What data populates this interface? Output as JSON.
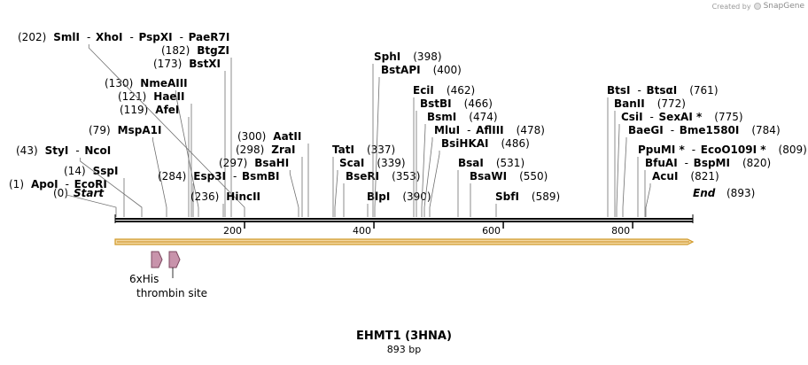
{
  "credit": {
    "text": "Created by",
    "brand": "SnapGene"
  },
  "map": {
    "name": "EHMT1 (3HNA)",
    "length_label": "893 bp",
    "length_bp": 893,
    "start_label": "Start",
    "start_pos": "(0)",
    "end_label": "End",
    "end_pos": "(893)",
    "ticks": [
      {
        "bp": 200,
        "label": "200"
      },
      {
        "bp": 400,
        "label": "400"
      },
      {
        "bp": 600,
        "label": "600"
      },
      {
        "bp": 800,
        "label": "800"
      }
    ],
    "colors": {
      "backbone": "#000000",
      "orf_fill": "#f3d9a4",
      "orf_stroke": "#d19a2a",
      "feature_fill": "#c893ab",
      "feature_stroke": "#7d4960"
    },
    "enzyme_groups": [
      {
        "pos": "(1)",
        "bp": 1,
        "names": [
          "ApoI",
          "EcoRI"
        ]
      },
      {
        "pos": "(14)",
        "bp": 14,
        "names": [
          "SspI"
        ]
      },
      {
        "pos": "(43)",
        "bp": 43,
        "names": [
          "StyI",
          "NcoI"
        ]
      },
      {
        "pos": "(79)",
        "bp": 79,
        "names": [
          "MspA1I"
        ]
      },
      {
        "pos": "(119)",
        "bp": 119,
        "names": [
          "AfeI"
        ]
      },
      {
        "pos": "(121)",
        "bp": 121,
        "names": [
          "HaeII"
        ]
      },
      {
        "pos": "(130)",
        "bp": 130,
        "names": [
          "NmeAIII"
        ]
      },
      {
        "pos": "(173)",
        "bp": 173,
        "names": [
          "BstXI"
        ]
      },
      {
        "pos": "(182)",
        "bp": 182,
        "names": [
          "BtgZI"
        ]
      },
      {
        "pos": "(202)",
        "bp": 202,
        "names": [
          "SmlI",
          "XhoI",
          "PspXI",
          "PaeR7I"
        ]
      },
      {
        "pos": "(284)",
        "bp": 284,
        "names": [
          "Esp3I",
          "BsmBI"
        ]
      },
      {
        "pos": "(236)",
        "bp": 236,
        "names": [
          "HincII"
        ]
      },
      {
        "pos": "(297)",
        "bp": 297,
        "names": [
          "BsaHI"
        ]
      },
      {
        "pos": "(298)",
        "bp": 298,
        "names": [
          "ZraI"
        ]
      },
      {
        "pos": "(300)",
        "bp": 300,
        "names": [
          "AatII"
        ]
      },
      {
        "pos": "(337)",
        "bp": 337,
        "names": [
          "TatI"
        ]
      },
      {
        "pos": "(339)",
        "bp": 339,
        "names": [
          "ScaI"
        ]
      },
      {
        "pos": "(353)",
        "bp": 353,
        "names": [
          "BseRI"
        ]
      },
      {
        "pos": "(390)",
        "bp": 390,
        "names": [
          "BlpI"
        ]
      },
      {
        "pos": "(398)",
        "bp": 398,
        "names": [
          "SphI"
        ]
      },
      {
        "pos": "(400)",
        "bp": 400,
        "names": [
          "BstAPI"
        ]
      },
      {
        "pos": "(462)",
        "bp": 462,
        "names": [
          "EciI"
        ]
      },
      {
        "pos": "(466)",
        "bp": 466,
        "names": [
          "BstBI"
        ]
      },
      {
        "pos": "(474)",
        "bp": 474,
        "names": [
          "BsmI"
        ]
      },
      {
        "pos": "(478)",
        "bp": 478,
        "names": [
          "MluI",
          "AflIII"
        ]
      },
      {
        "pos": "(486)",
        "bp": 486,
        "names": [
          "BsiHKAI"
        ]
      },
      {
        "pos": "(531)",
        "bp": 531,
        "names": [
          "BsaI"
        ]
      },
      {
        "pos": "(550)",
        "bp": 550,
        "names": [
          "BsaWI"
        ]
      },
      {
        "pos": "(589)",
        "bp": 589,
        "names": [
          "SbfI"
        ]
      },
      {
        "pos": "(761)",
        "bp": 761,
        "names": [
          "BtsI",
          "BtsαI"
        ]
      },
      {
        "pos": "(772)",
        "bp": 772,
        "names": [
          "BanII"
        ]
      },
      {
        "pos": "(775)",
        "bp": 775,
        "names": [
          "CsiI",
          "SexAI *"
        ]
      },
      {
        "pos": "(784)",
        "bp": 784,
        "names": [
          "BaeGI",
          "Bme1580I"
        ]
      },
      {
        "pos": "(809)",
        "bp": 809,
        "names": [
          "PpuMI *",
          "EcoO109I *"
        ]
      },
      {
        "pos": "(820)",
        "bp": 820,
        "names": [
          "BfuAI",
          "BspMI"
        ]
      },
      {
        "pos": "(821)",
        "bp": 821,
        "names": [
          "AcuI"
        ]
      }
    ],
    "features": [
      {
        "name": "6xHis",
        "start_bp": 55,
        "end_bp": 72
      },
      {
        "name": "thrombin site",
        "start_bp": 85,
        "end_bp": 102
      }
    ]
  }
}
